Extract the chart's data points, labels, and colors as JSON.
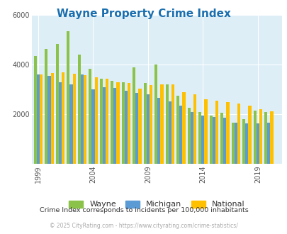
{
  "title": "Wayne Property Crime Index",
  "title_color": "#1a6faf",
  "subtitle": "Crime Index corresponds to incidents per 100,000 inhabitants",
  "footer": "© 2025 CityRating.com - https://www.cityrating.com/crime-statistics/",
  "years": [
    1999,
    2000,
    2001,
    2002,
    2003,
    2004,
    2005,
    2006,
    2007,
    2008,
    2009,
    2010,
    2011,
    2012,
    2013,
    2014,
    2015,
    2016,
    2017,
    2018,
    2019,
    2020
  ],
  "wayne": [
    4350,
    4650,
    4850,
    5350,
    4400,
    3850,
    3450,
    3350,
    3300,
    3900,
    3250,
    4000,
    3200,
    2750,
    2250,
    2100,
    1950,
    2050,
    1650,
    1800,
    2150,
    2100
  ],
  "michigan": [
    3600,
    3550,
    3300,
    3200,
    3600,
    3020,
    3100,
    3050,
    2950,
    2870,
    2820,
    2650,
    2520,
    2360,
    2100,
    1950,
    1900,
    1850,
    1650,
    1620,
    1620,
    1650
  ],
  "national": [
    3600,
    3670,
    3700,
    3650,
    3580,
    3480,
    3450,
    3300,
    3250,
    3040,
    3180,
    3220,
    3200,
    2900,
    2810,
    2610,
    2560,
    2490,
    2440,
    2350,
    2200,
    2110
  ],
  "wayne_color": "#8bc34a",
  "michigan_color": "#5b9bd5",
  "national_color": "#ffc000",
  "plot_bg": "#ddeef6",
  "ylim": [
    0,
    6000
  ],
  "yticks": [
    0,
    2000,
    4000,
    6000
  ],
  "xticks": [
    1999,
    2004,
    2009,
    2014,
    2019
  ],
  "grid_color": "#ffffff",
  "bar_width": 0.27
}
